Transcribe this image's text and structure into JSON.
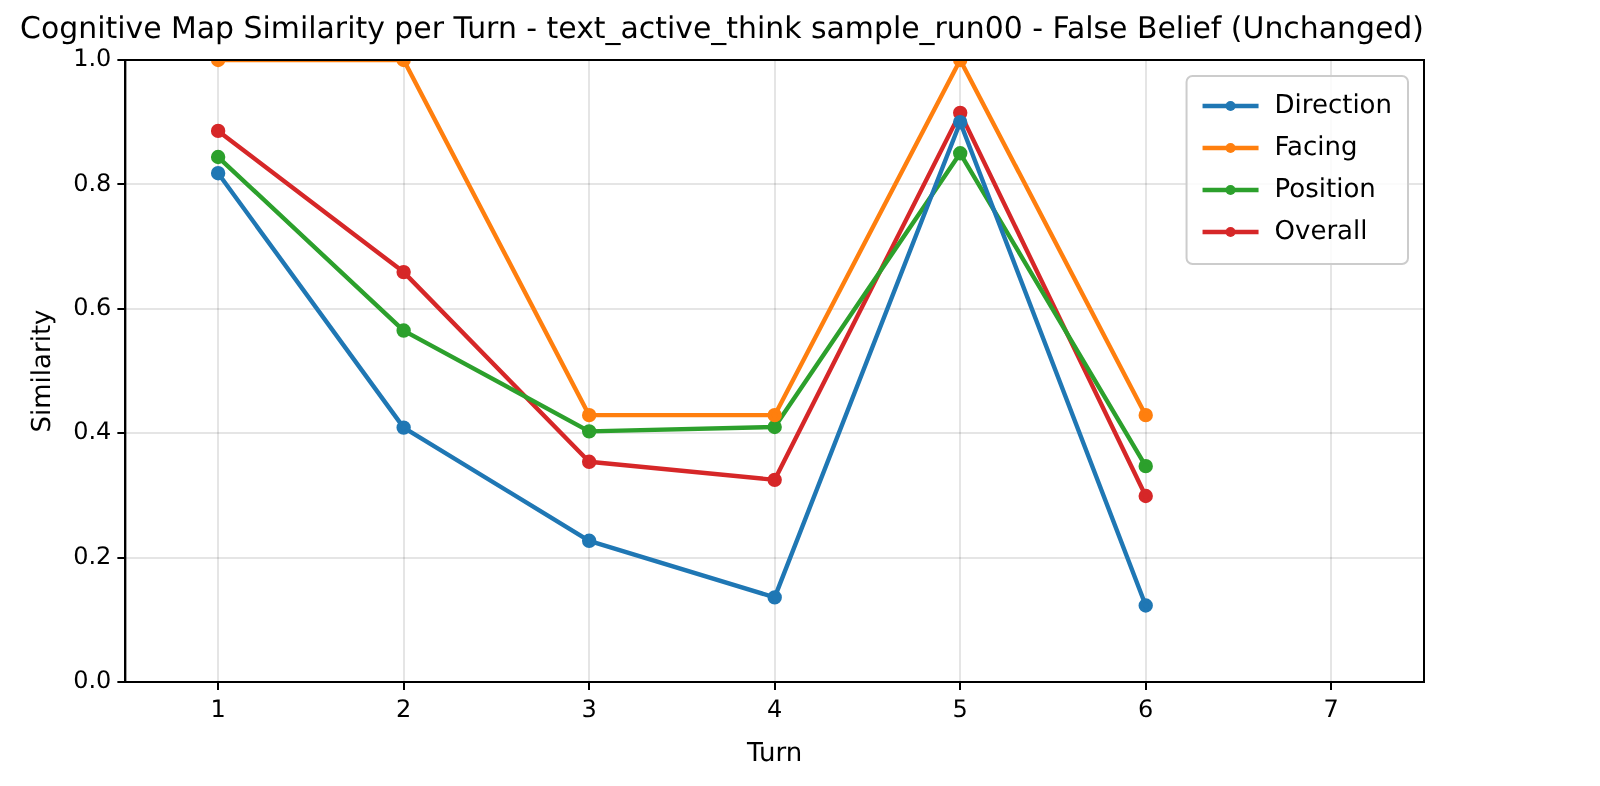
{
  "chart_data": {
    "type": "line",
    "title": "Cognitive Map Similarity per Turn - text_active_think sample_run00 - False Belief (Unchanged)",
    "xlabel": "Turn",
    "ylabel": "Similarity",
    "x": [
      1,
      2,
      3,
      4,
      5,
      6
    ],
    "series": [
      {
        "name": "Direction",
        "color": "#1f77b4",
        "values": [
          0.818,
          0.409,
          0.227,
          0.136,
          0.9,
          0.123
        ]
      },
      {
        "name": "Facing",
        "color": "#ff7f0e",
        "values": [
          1.0,
          1.0,
          0.429,
          0.429,
          1.0,
          0.429
        ]
      },
      {
        "name": "Position",
        "color": "#2ca02c",
        "values": [
          0.844,
          0.565,
          0.403,
          0.41,
          0.85,
          0.347
        ]
      },
      {
        "name": "Overall",
        "color": "#d62728",
        "values": [
          0.886,
          0.659,
          0.354,
          0.325,
          0.915,
          0.299
        ]
      }
    ],
    "xlim": [
      0.5,
      7.5
    ],
    "xticks": [
      1,
      2,
      3,
      4,
      5,
      6,
      7
    ],
    "ylim": [
      0,
      1
    ],
    "yticks": [
      {
        "value": 0,
        "label": "0.0"
      },
      0.2,
      0.4,
      0.6,
      0.8,
      {
        "value": 1,
        "label": "1.0"
      }
    ],
    "grid": true,
    "legend": "top right",
    "marker": "circle",
    "line_style": "solid"
  }
}
